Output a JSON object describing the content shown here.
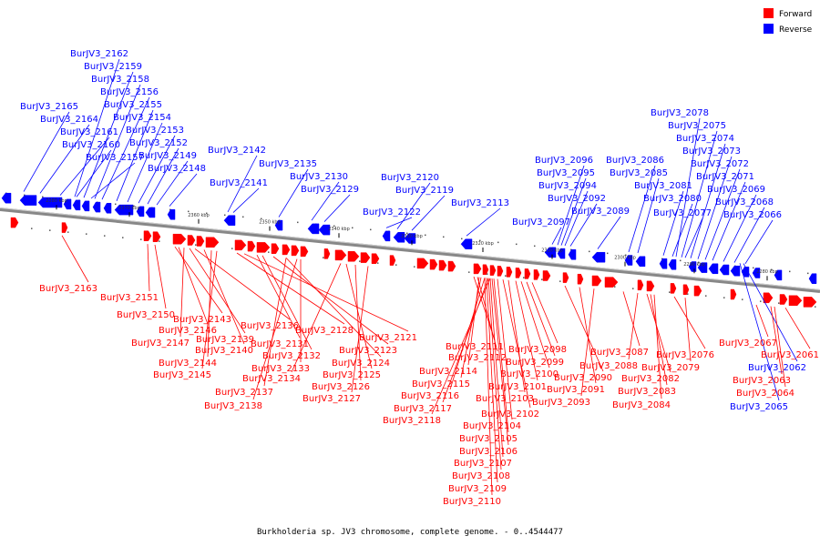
{
  "caption": "Burkholderia sp. JV3 chromosome, complete genome. - 0..4544477",
  "legend": [
    {
      "label": "Forward",
      "color": "#ff0000"
    },
    {
      "label": "Reverse",
      "color": "#0000ff"
    }
  ],
  "colors": {
    "forward": "#ff0000",
    "reverse": "#0000ff",
    "axis": "#808080"
  },
  "ruler_ticks": [
    "2380 kbp",
    "2370 kbp",
    "2360 kbp",
    "2350 kbp",
    "2340 kbp",
    "2330 kbp",
    "2320 kbp",
    "2310 kbp",
    "2300 kbp",
    "2290 kbp",
    "2280 kbp"
  ],
  "genes_reverse": [
    "BurJV3_2162",
    "BurJV3_2159",
    "BurJV3_2158",
    "BurJV3_2156",
    "BurJV3_2165",
    "BurJV3_2155",
    "BurJV3_2164",
    "BurJV3_2154",
    "BurJV3_2161",
    "BurJV3_2153",
    "BurJV3_2160",
    "BurJV3_2152",
    "BurJV3_2157",
    "BurJV3_2149",
    "BurJV3_2148",
    "BurJV3_2142",
    "BurJV3_2141",
    "BurJV3_2135",
    "BurJV3_2130",
    "BurJV3_2129",
    "BurJV3_2120",
    "BurJV3_2119",
    "BurJV3_2122",
    "BurJV3_2113",
    "BurJV3_2096",
    "BurJV3_2095",
    "BurJV3_2094",
    "BurJV3_2092",
    "BurJV3_2097",
    "BurJV3_2089",
    "BurJV3_2086",
    "BurJV3_2085",
    "BurJV3_2078",
    "BurJV3_2075",
    "BurJV3_2074",
    "BurJV3_2073",
    "BurJV3_2072",
    "BurJV3_2071",
    "BurJV3_2081",
    "BurJV3_2069",
    "BurJV3_2080",
    "BurJV3_2068",
    "BurJV3_2077",
    "BurJV3_2066",
    "BurJV3_2062",
    "BurJV3_2065"
  ],
  "genes_forward": [
    "BurJV3_2163",
    "BurJV3_2151",
    "BurJV3_2150",
    "BurJV3_2143",
    "BurJV3_2146",
    "BurJV3_2147",
    "BurJV3_2139",
    "BurJV3_2136",
    "BurJV3_2140",
    "BurJV3_2144",
    "BurJV3_2145",
    "BurJV3_2128",
    "BurJV3_2121",
    "BurJV3_2131",
    "BurJV3_2132",
    "BurJV3_2123",
    "BurJV3_2124",
    "BurJV3_2133",
    "BurJV3_2134",
    "BurJV3_2125",
    "BurJV3_2126",
    "BurJV3_2137",
    "BurJV3_2127",
    "BurJV3_2138",
    "BurJV3_2111",
    "BurJV3_2112",
    "BurJV3_2114",
    "BurJV3_2115",
    "BurJV3_2116",
    "BurJV3_2117",
    "BurJV3_2118",
    "BurJV3_2098",
    "BurJV3_2099",
    "BurJV3_2100",
    "BurJV3_2101",
    "BurJV3_2103",
    "BurJV3_2102",
    "BurJV3_2104",
    "BurJV3_2105",
    "BurJV3_2106",
    "BurJV3_2107",
    "BurJV3_2108",
    "BurJV3_2109",
    "BurJV3_2110",
    "BurJV3_2090",
    "BurJV3_2091",
    "BurJV3_2093",
    "BurJV3_2087",
    "BurJV3_2088",
    "BurJV3_2082",
    "BurJV3_2083",
    "BurJV3_2084",
    "BurJV3_2076",
    "BurJV3_2079",
    "BurJV3_2067",
    "BurJV3_2061",
    "BurJV3_2063",
    "BurJV3_2064"
  ]
}
